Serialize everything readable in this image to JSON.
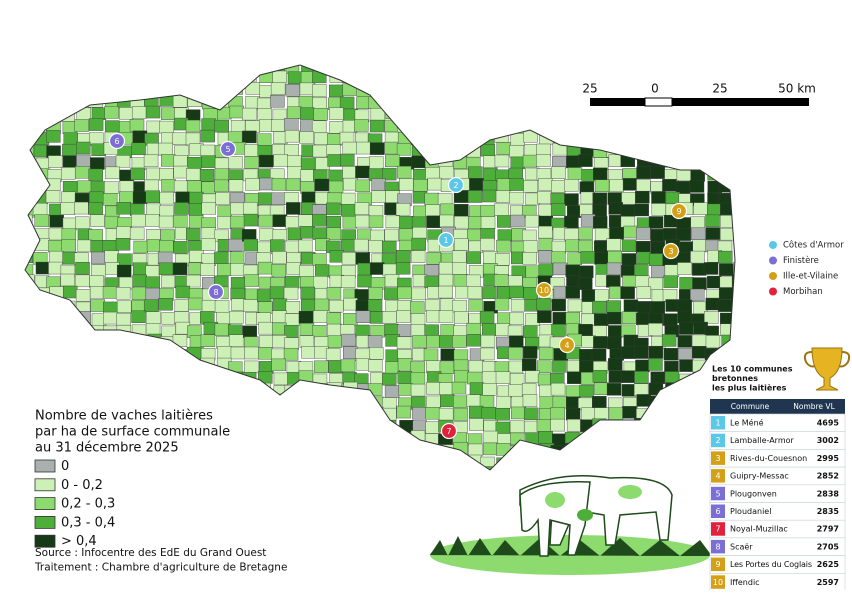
{
  "scale_bar": {
    "labels": [
      "25",
      "0",
      "25",
      "50 km"
    ]
  },
  "departments_legend": [
    {
      "name": "Côtes d'Armor",
      "color": "#5bc8e8"
    },
    {
      "name": "Finistère",
      "color": "#7b6fd6"
    },
    {
      "name": "Ille-et-Vilaine",
      "color": "#d4a017"
    },
    {
      "name": "Morbihan",
      "color": "#e0223c"
    }
  ],
  "density_legend": {
    "title": [
      "Nombre de vaches laitières",
      "par ha de surface communale",
      "au 31 décembre 2025"
    ],
    "classes": [
      {
        "label": "0",
        "color": "#a9b0ad"
      },
      {
        "label": "0 - 0,2",
        "color": "#cdf0b7"
      },
      {
        "label": "0,2 - 0,3",
        "color": "#8ddb6f"
      },
      {
        "label": "0,3 - 0,4",
        "color": "#4daf3a"
      },
      {
        "label": "> 0,4",
        "color": "#163a15"
      }
    ]
  },
  "source": [
    "Source : Infocentre des EdE du Grand Ouest",
    "Traitement : Chambre d'agriculture de Bretagne"
  ],
  "ranking": {
    "title": [
      "Les 10 communes",
      "bretonnes",
      "les plus laitières"
    ],
    "columns": [
      "Commune",
      "Nombre VL"
    ],
    "rows": [
      {
        "rank": "1",
        "commune": "Le Méné",
        "vl": "4695",
        "department": 0
      },
      {
        "rank": "2",
        "commune": "Lamballe-Armor",
        "vl": "3002",
        "department": 0
      },
      {
        "rank": "3",
        "commune": "Rives-du-Couesnon",
        "vl": "2995",
        "department": 2
      },
      {
        "rank": "4",
        "commune": "Guipry-Messac",
        "vl": "2852",
        "department": 2
      },
      {
        "rank": "5",
        "commune": "Plougonven",
        "vl": "2838",
        "department": 1
      },
      {
        "rank": "6",
        "commune": "Ploudaniel",
        "vl": "2835",
        "department": 1
      },
      {
        "rank": "7",
        "commune": "Noyal-Muzillac",
        "vl": "2797",
        "department": 3
      },
      {
        "rank": "8",
        "commune": "Scaër",
        "vl": "2705",
        "department": 1
      },
      {
        "rank": "9",
        "commune": "Les Portes du Coglais",
        "vl": "2625",
        "department": 2
      },
      {
        "rank": "10",
        "commune": "Iffendic",
        "vl": "2597",
        "department": 2
      }
    ]
  }
}
